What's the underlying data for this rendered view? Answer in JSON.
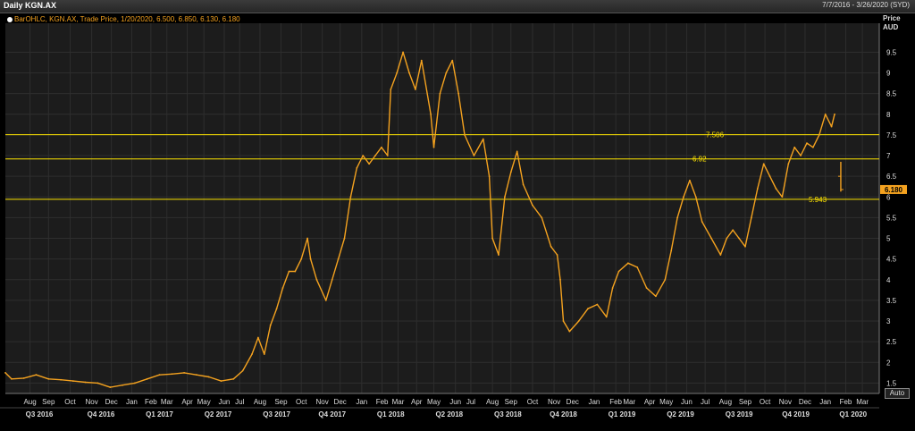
{
  "header": {
    "title": "Daily KGN.AX",
    "date_range": "7/7/2016 - 3/26/2020 (SYD)"
  },
  "legend": {
    "text": "BarOHLC, KGN.AX, Trade Price, 1/20/2020, 6.500, 6.850, 6.130, 6.180"
  },
  "axis": {
    "price_label": "Price",
    "unit_label": "AUD",
    "auto_label": "Auto"
  },
  "colors": {
    "series": "#f4a21f",
    "levels": "#ffe500",
    "grid": "#2e2e2e",
    "last_price_box": "#f4a21f"
  },
  "chart_data": {
    "type": "line",
    "title": "",
    "series_name": "KGN.AX",
    "ylim": [
      1.25,
      10.2
    ],
    "y_ticks": [
      1.5,
      2,
      2.5,
      3,
      3.5,
      4,
      4.5,
      5,
      5.5,
      6,
      6.5,
      7,
      7.5,
      8,
      8.5,
      9,
      9.5
    ],
    "grid": true,
    "last_price": 6.18,
    "last_price_label": "6.180",
    "horizontal_levels": [
      {
        "value": 7.506,
        "label": "7.506"
      },
      {
        "value": 6.92,
        "label": "6.92"
      },
      {
        "value": 5.943,
        "label": "5.943"
      }
    ],
    "months": [
      {
        "label": "Aug",
        "t": 0.04
      },
      {
        "label": "Sep",
        "t": 0.07
      },
      {
        "label": "Oct",
        "t": 0.105
      },
      {
        "label": "Nov",
        "t": 0.14
      },
      {
        "label": "Dec",
        "t": 0.172
      },
      {
        "label": "Jan",
        "t": 0.205
      },
      {
        "label": "Feb",
        "t": 0.236
      },
      {
        "label": "Mar",
        "t": 0.262
      },
      {
        "label": "Apr",
        "t": 0.295
      },
      {
        "label": "May",
        "t": 0.322
      },
      {
        "label": "Jun",
        "t": 0.355
      },
      {
        "label": "Jul",
        "t": 0.38
      },
      {
        "label": "Aug",
        "t": 0.413
      },
      {
        "label": "Sep",
        "t": 0.447
      },
      {
        "label": "Oct",
        "t": 0.48
      },
      {
        "label": "Nov",
        "t": 0.514
      },
      {
        "label": "Dec",
        "t": 0.543
      },
      {
        "label": "Jan",
        "t": 0.578
      },
      {
        "label": "Feb",
        "t": 0.611
      },
      {
        "label": "Mar",
        "t": 0.637
      },
      {
        "label": "Apr",
        "t": 0.667
      },
      {
        "label": "May",
        "t": 0.695
      },
      {
        "label": "Jun",
        "t": 0.73
      },
      {
        "label": "Jul",
        "t": 0.755
      },
      {
        "label": "Aug",
        "t": 0.79
      },
      {
        "label": "Sep",
        "t": 0.82
      },
      {
        "label": "Oct",
        "t": 0.855
      },
      {
        "label": "Nov",
        "t": 0.89
      },
      {
        "label": "Dec",
        "t": 0.92
      },
      {
        "label": "Jan",
        "t": 0.955
      },
      {
        "label": "Feb",
        "t": 0.99
      },
      {
        "label": "Mar",
        "t": 1.012
      },
      {
        "label": "Apr",
        "t": 1.045
      },
      {
        "label": "May",
        "t": 1.072
      },
      {
        "label": "Jun",
        "t": 1.105
      },
      {
        "label": "Jul",
        "t": 1.135
      },
      {
        "label": "Aug",
        "t": 1.168
      },
      {
        "label": "Sep",
        "t": 1.2
      },
      {
        "label": "Oct",
        "t": 1.232
      },
      {
        "label": "Nov",
        "t": 1.265
      },
      {
        "label": "Dec",
        "t": 1.297
      },
      {
        "label": "Jan",
        "t": 1.33
      },
      {
        "label": "Feb",
        "t": 1.363
      },
      {
        "label": "Mar",
        "t": 1.39
      }
    ],
    "quarters": [
      {
        "label": "Q3 2016",
        "t": 0.055
      },
      {
        "label": "Q4 2016",
        "t": 0.155
      },
      {
        "label": "Q1 2017",
        "t": 0.25
      },
      {
        "label": "Q2 2017",
        "t": 0.345
      },
      {
        "label": "Q3 2017",
        "t": 0.44
      },
      {
        "label": "Q4 2017",
        "t": 0.53
      },
      {
        "label": "Q1 2018",
        "t": 0.625
      },
      {
        "label": "Q2 2018",
        "t": 0.72
      },
      {
        "label": "Q3 2018",
        "t": 0.815
      },
      {
        "label": "Q4 2018",
        "t": 0.905
      },
      {
        "label": "Q1 2019",
        "t": 1.0
      },
      {
        "label": "Q2 2019",
        "t": 1.095
      },
      {
        "label": "Q3 2019",
        "t": 1.19
      },
      {
        "label": "Q4 2019",
        "t": 1.282
      },
      {
        "label": "Q1 2020",
        "t": 1.375
      }
    ],
    "price_points": [
      [
        0.0,
        1.75
      ],
      [
        0.01,
        1.6
      ],
      [
        0.03,
        1.62
      ],
      [
        0.05,
        1.7
      ],
      [
        0.07,
        1.6
      ],
      [
        0.09,
        1.58
      ],
      [
        0.11,
        1.55
      ],
      [
        0.13,
        1.52
      ],
      [
        0.15,
        1.5
      ],
      [
        0.17,
        1.4
      ],
      [
        0.19,
        1.45
      ],
      [
        0.21,
        1.5
      ],
      [
        0.23,
        1.6
      ],
      [
        0.25,
        1.7
      ],
      [
        0.27,
        1.72
      ],
      [
        0.29,
        1.75
      ],
      [
        0.31,
        1.7
      ],
      [
        0.33,
        1.65
      ],
      [
        0.35,
        1.55
      ],
      [
        0.37,
        1.6
      ],
      [
        0.385,
        1.8
      ],
      [
        0.4,
        2.2
      ],
      [
        0.41,
        2.6
      ],
      [
        0.42,
        2.2
      ],
      [
        0.43,
        2.9
      ],
      [
        0.44,
        3.3
      ],
      [
        0.45,
        3.8
      ],
      [
        0.46,
        4.2
      ],
      [
        0.47,
        4.2
      ],
      [
        0.48,
        4.5
      ],
      [
        0.49,
        5.0
      ],
      [
        0.495,
        4.5
      ],
      [
        0.505,
        4.0
      ],
      [
        0.52,
        3.5
      ],
      [
        0.53,
        4.0
      ],
      [
        0.54,
        4.5
      ],
      [
        0.55,
        5.0
      ],
      [
        0.56,
        6.0
      ],
      [
        0.57,
        6.7
      ],
      [
        0.58,
        7.0
      ],
      [
        0.59,
        6.8
      ],
      [
        0.6,
        7.0
      ],
      [
        0.61,
        7.2
      ],
      [
        0.62,
        7.0
      ],
      [
        0.625,
        8.6
      ],
      [
        0.635,
        9.0
      ],
      [
        0.645,
        9.5
      ],
      [
        0.655,
        9.0
      ],
      [
        0.665,
        8.6
      ],
      [
        0.675,
        9.3
      ],
      [
        0.69,
        8.0
      ],
      [
        0.695,
        7.2
      ],
      [
        0.705,
        8.5
      ],
      [
        0.715,
        9.0
      ],
      [
        0.725,
        9.3
      ],
      [
        0.735,
        8.5
      ],
      [
        0.745,
        7.5
      ],
      [
        0.76,
        7.0
      ],
      [
        0.775,
        7.4
      ],
      [
        0.785,
        6.5
      ],
      [
        0.79,
        5.0
      ],
      [
        0.8,
        4.6
      ],
      [
        0.81,
        6.0
      ],
      [
        0.82,
        6.6
      ],
      [
        0.83,
        7.1
      ],
      [
        0.84,
        6.3
      ],
      [
        0.855,
        5.8
      ],
      [
        0.87,
        5.5
      ],
      [
        0.885,
        4.8
      ],
      [
        0.895,
        4.6
      ],
      [
        0.9,
        4.0
      ],
      [
        0.905,
        3.0
      ],
      [
        0.915,
        2.75
      ],
      [
        0.93,
        3.0
      ],
      [
        0.945,
        3.3
      ],
      [
        0.96,
        3.4
      ],
      [
        0.975,
        3.1
      ],
      [
        0.985,
        3.8
      ],
      [
        0.995,
        4.2
      ],
      [
        1.01,
        4.4
      ],
      [
        1.025,
        4.3
      ],
      [
        1.04,
        3.8
      ],
      [
        1.055,
        3.6
      ],
      [
        1.07,
        4.0
      ],
      [
        1.08,
        4.7
      ],
      [
        1.09,
        5.5
      ],
      [
        1.1,
        6.0
      ],
      [
        1.11,
        6.4
      ],
      [
        1.12,
        6.0
      ],
      [
        1.13,
        5.4
      ],
      [
        1.145,
        5.0
      ],
      [
        1.16,
        4.6
      ],
      [
        1.17,
        5.0
      ],
      [
        1.18,
        5.2
      ],
      [
        1.19,
        5.0
      ],
      [
        1.2,
        4.8
      ],
      [
        1.21,
        5.5
      ],
      [
        1.22,
        6.2
      ],
      [
        1.23,
        6.8
      ],
      [
        1.24,
        6.5
      ],
      [
        1.25,
        6.2
      ],
      [
        1.26,
        6.0
      ],
      [
        1.27,
        6.8
      ],
      [
        1.28,
        7.2
      ],
      [
        1.29,
        7.0
      ],
      [
        1.3,
        7.3
      ],
      [
        1.31,
        7.2
      ],
      [
        1.32,
        7.5
      ],
      [
        1.33,
        8.0
      ],
      [
        1.34,
        7.7
      ],
      [
        1.345,
        8.0
      ]
    ],
    "final_bar": {
      "t": 1.355,
      "open": 6.5,
      "high": 6.85,
      "low": 6.13,
      "close": 6.18
    }
  }
}
